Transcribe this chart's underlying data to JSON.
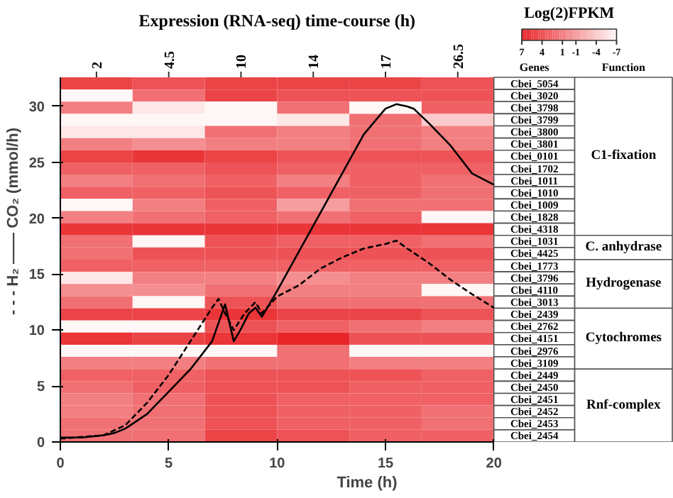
{
  "chart_data": [
    {
      "type": "heatmap",
      "title": "Expression (RNA-seq) time-course (h)",
      "categories": [
        "2",
        "4.5",
        "10",
        "14",
        "17",
        "26.5"
      ],
      "y_categories": [
        "Cbei_5054",
        "Cbei_3020",
        "Cbei_3798",
        "Cbei_3799",
        "Cbei_3800",
        "Cbei_3801",
        "Cbei_0101",
        "Cbei_1702",
        "Cbei_1011",
        "Cbei_1010",
        "Cbei_1009",
        "Cbei_1828",
        "Cbei_4318",
        "Cbei_1031",
        "Cbei_4425",
        "Cbei_1773",
        "Cbei_3796",
        "Cbei_4110",
        "Cbei_3013",
        "Cbei_2439",
        "Cbei_2762",
        "Cbei_4151",
        "Cbei_2976",
        "Cbei_3109",
        "Cbei_2449",
        "Cbei_2450",
        "Cbei_2451",
        "Cbei_2452",
        "Cbei_2453",
        "Cbei_2454"
      ],
      "cells": [
        [
          5,
          4,
          5,
          5,
          5,
          4
        ],
        [
          -7,
          2,
          5,
          4,
          4,
          4
        ],
        [
          1,
          -6,
          -7,
          2,
          -7,
          3
        ],
        [
          -7,
          -7,
          -7,
          -6,
          2,
          -4
        ],
        [
          -6,
          -6,
          2,
          1,
          2,
          1
        ],
        [
          1,
          0,
          1,
          1,
          2,
          1
        ],
        [
          5,
          6,
          5,
          4,
          4,
          4
        ],
        [
          3,
          3,
          4,
          3,
          3,
          3
        ],
        [
          1,
          2,
          3,
          1,
          3,
          2
        ],
        [
          3,
          3,
          4,
          3,
          3,
          2
        ],
        [
          -7,
          1,
          3,
          -1,
          2,
          2
        ],
        [
          1,
          2,
          3,
          2,
          3,
          -7
        ],
        [
          6,
          6,
          6,
          6,
          6,
          6
        ],
        [
          2,
          -7,
          4,
          3,
          3,
          2
        ],
        [
          2,
          4,
          4,
          4,
          4,
          4
        ],
        [
          3,
          3,
          3,
          3,
          3,
          3
        ],
        [
          -6,
          1,
          1,
          0,
          1,
          1
        ],
        [
          0,
          0,
          2,
          1,
          1,
          -7
        ],
        [
          2,
          -7,
          4,
          2,
          2,
          2
        ],
        [
          5,
          5,
          6,
          5,
          5,
          4
        ],
        [
          -7,
          -7,
          4,
          3,
          2,
          1
        ],
        [
          6,
          5,
          6,
          7,
          4,
          4
        ],
        [
          -7,
          -7,
          -7,
          2,
          -7,
          -7
        ],
        [
          1,
          1,
          2,
          2,
          1,
          1
        ],
        [
          3,
          3,
          4,
          4,
          4,
          3
        ],
        [
          2,
          3,
          4,
          4,
          3,
          3
        ],
        [
          1,
          2,
          4,
          3,
          3,
          3
        ],
        [
          1,
          2,
          4,
          3,
          3,
          2
        ],
        [
          2,
          2,
          4,
          3,
          3,
          2
        ],
        [
          2,
          2,
          5,
          4,
          3,
          3
        ]
      ],
      "clim": [
        7,
        -7
      ],
      "cticks": [
        7,
        4,
        1,
        -1,
        -4,
        -7
      ],
      "clabel": "Log(2)FPKM",
      "annotations": [
        "Genes",
        "Function",
        "C1-fixation",
        "C. anhydrase",
        "Hydrogenase",
        "Cytochromes",
        "Rnf-complex"
      ]
    },
    {
      "type": "line",
      "xlabel": "Time (h)",
      "ylabel": "- - - H₂ —— CO₂ (mmol/h)",
      "xlim": [
        0,
        20
      ],
      "ylim": [
        0,
        32.6
      ],
      "xticks": [
        0,
        5,
        10,
        15,
        20
      ],
      "yticks": [
        0,
        5,
        10,
        15,
        20,
        25,
        30
      ],
      "grid": false,
      "series": [
        {
          "color": "#000000",
          "line_style": "solid",
          "x": [
            0,
            1,
            2,
            2.5,
            3,
            4,
            5,
            6,
            7,
            7.6,
            8,
            8.3,
            8.7,
            9,
            9.3,
            9.7,
            10,
            11,
            12,
            13,
            14,
            15,
            15.5,
            16,
            16.3,
            17,
            18,
            19,
            20
          ],
          "values": [
            0.4,
            0.4,
            0.6,
            0.8,
            1.2,
            2.5,
            4.5,
            6.5,
            9,
            12.3,
            9,
            10,
            11.5,
            12,
            11.2,
            12.5,
            13.5,
            17,
            20.5,
            24,
            27.5,
            29.8,
            30.2,
            30,
            29.8,
            28.5,
            26.5,
            24,
            23
          ]
        },
        {
          "color": "#000000",
          "line_style": "dashed",
          "x": [
            0,
            2,
            3,
            4,
            5,
            6,
            7,
            7.3,
            7.6,
            8,
            8.5,
            9,
            9.3,
            10,
            11,
            12,
            13,
            14,
            15,
            15.5,
            16,
            17,
            18,
            19,
            20
          ],
          "values": [
            0.3,
            0.6,
            1.5,
            3.5,
            6,
            9,
            12,
            12.8,
            11.5,
            10,
            11.5,
            12.5,
            11.5,
            13,
            14,
            15.5,
            16.5,
            17.3,
            17.7,
            18,
            17.3,
            16,
            14.5,
            13.2,
            12
          ]
        }
      ]
    }
  ]
}
